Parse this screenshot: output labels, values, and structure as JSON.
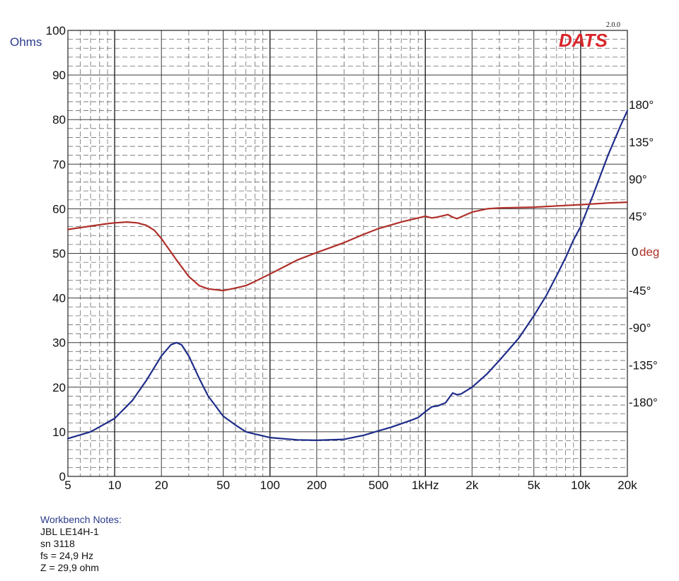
{
  "brand": {
    "name": "DATS",
    "version": "2.0.0"
  },
  "chart_data": {
    "type": "line",
    "x_scale": "log",
    "xlim": [
      5,
      20000
    ],
    "ylim": [
      0,
      100
    ],
    "y2lim": [
      -270,
      270
    ],
    "grid": true,
    "ylabel": "Ohms",
    "y2label_prefix": "0",
    "y2label": "deg",
    "x_ticks": [
      {
        "value": 5,
        "label": "5"
      },
      {
        "value": 10,
        "label": "10"
      },
      {
        "value": 20,
        "label": "20"
      },
      {
        "value": 50,
        "label": "50"
      },
      {
        "value": 100,
        "label": "100"
      },
      {
        "value": 200,
        "label": "200"
      },
      {
        "value": 500,
        "label": "500"
      },
      {
        "value": 1000,
        "label": "1kHz"
      },
      {
        "value": 2000,
        "label": "2k"
      },
      {
        "value": 5000,
        "label": "5k"
      },
      {
        "value": 10000,
        "label": "10k"
      },
      {
        "value": 20000,
        "label": "20k"
      }
    ],
    "y_ticks": [
      "0",
      "10",
      "20",
      "30",
      "40",
      "50",
      "60",
      "70",
      "80",
      "90",
      "100"
    ],
    "y2_ticks": [
      {
        "value": 180,
        "label": "180°"
      },
      {
        "value": 135,
        "label": "135°"
      },
      {
        "value": 90,
        "label": "90°"
      },
      {
        "value": 45,
        "label": "45°"
      },
      {
        "value": -45,
        "label": "-45°"
      },
      {
        "value": -90,
        "label": "-90°"
      },
      {
        "value": -135,
        "label": "-135°"
      },
      {
        "value": -180,
        "label": "-180°"
      }
    ],
    "series": [
      {
        "axis": "left",
        "color": "#1f2d8a",
        "points": [
          [
            5,
            8.5
          ],
          [
            7,
            10
          ],
          [
            10,
            13
          ],
          [
            13,
            17
          ],
          [
            16,
            21.5
          ],
          [
            20,
            27
          ],
          [
            23,
            29.5
          ],
          [
            25,
            30
          ],
          [
            27,
            29.5
          ],
          [
            30,
            27
          ],
          [
            35,
            22
          ],
          [
            40,
            18
          ],
          [
            50,
            13.5
          ],
          [
            60,
            11.5
          ],
          [
            70,
            10
          ],
          [
            80,
            9.5
          ],
          [
            100,
            8.7
          ],
          [
            150,
            8.2
          ],
          [
            200,
            8.1
          ],
          [
            300,
            8.3
          ],
          [
            400,
            9.2
          ],
          [
            500,
            10.2
          ],
          [
            600,
            11
          ],
          [
            800,
            12.5
          ],
          [
            900,
            13.2
          ],
          [
            1000,
            14.5
          ],
          [
            1100,
            15.6
          ],
          [
            1200,
            15.8
          ],
          [
            1350,
            16.5
          ],
          [
            1500,
            18.7
          ],
          [
            1600,
            18.3
          ],
          [
            1700,
            18.5
          ],
          [
            2000,
            20
          ],
          [
            2500,
            23
          ],
          [
            3000,
            26
          ],
          [
            4000,
            31
          ],
          [
            5000,
            36
          ],
          [
            6000,
            40.5
          ],
          [
            7000,
            45
          ],
          [
            8000,
            49
          ],
          [
            9000,
            53
          ],
          [
            10000,
            56
          ],
          [
            12000,
            63
          ],
          [
            15000,
            72
          ],
          [
            18000,
            78.5
          ],
          [
            20000,
            82
          ]
        ]
      },
      {
        "axis": "right",
        "color": "#b0302a",
        "points": [
          [
            5,
            29
          ],
          [
            7,
            33
          ],
          [
            9,
            36
          ],
          [
            10,
            37
          ],
          [
            12,
            38
          ],
          [
            14,
            37
          ],
          [
            16,
            34
          ],
          [
            18,
            28
          ],
          [
            20,
            18
          ],
          [
            25,
            -8
          ],
          [
            30,
            -28
          ],
          [
            35,
            -39
          ],
          [
            40,
            -43
          ],
          [
            50,
            -45
          ],
          [
            60,
            -42
          ],
          [
            70,
            -39
          ],
          [
            80,
            -34
          ],
          [
            100,
            -25
          ],
          [
            130,
            -14
          ],
          [
            150,
            -8
          ],
          [
            200,
            1
          ],
          [
            300,
            13
          ],
          [
            400,
            23
          ],
          [
            500,
            30
          ],
          [
            700,
            38
          ],
          [
            900,
            43
          ],
          [
            1000,
            45
          ],
          [
            1100,
            43
          ],
          [
            1200,
            44
          ],
          [
            1400,
            47
          ],
          [
            1500,
            44
          ],
          [
            1600,
            42
          ],
          [
            2000,
            50
          ],
          [
            2500,
            54
          ],
          [
            3000,
            55
          ],
          [
            5000,
            56
          ],
          [
            8000,
            58
          ],
          [
            10000,
            59
          ],
          [
            15000,
            61
          ],
          [
            20000,
            62
          ]
        ]
      }
    ]
  },
  "notes": {
    "title": "Workbench Notes:",
    "lines": [
      "JBL LE14H-1",
      "sn 3118",
      "fs = 24,9 Hz",
      "Z = 29,9 ohm"
    ]
  }
}
